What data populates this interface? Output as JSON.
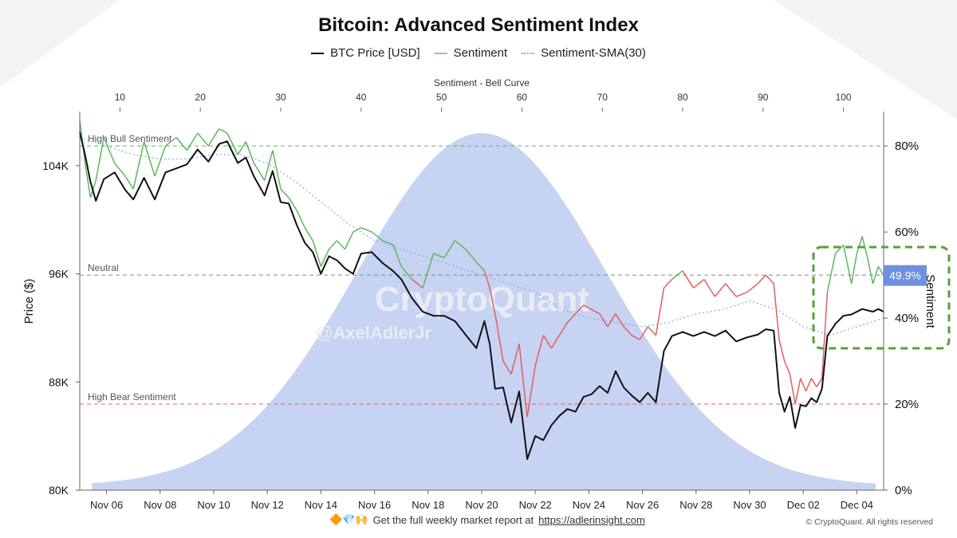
{
  "title": "Bitcoin: Advanced Sentiment Index",
  "legend": [
    {
      "label": "BTC Price [USD]",
      "color": "#111111",
      "style": "solid"
    },
    {
      "label": "Sentiment",
      "color": "#9fb3e8",
      "style": "solid"
    },
    {
      "label": "Sentiment-SMA(30)",
      "color": "#9aa9d8",
      "style": "dotted"
    }
  ],
  "watermark": {
    "brand": "CryptoQuant",
    "handle": "@AxelAdlerJr"
  },
  "footer": {
    "emojis": "🔶💎🙌",
    "text": "Get the full weekly market report at",
    "link": "https://adlerinsight.com",
    "copyright": "© CryptoQuant. All rights reserved"
  },
  "chart_data": {
    "type": "line",
    "title": "Bitcoin: Advanced Sentiment Index",
    "top_axis": {
      "label": "Sentiment - Bell Curve",
      "range": [
        5,
        105
      ],
      "ticks": [
        "10",
        "20",
        "30",
        "40",
        "50",
        "60",
        "70",
        "80",
        "90",
        "100"
      ]
    },
    "left_axis": {
      "label": "Price ($)",
      "range": [
        80000,
        108000
      ],
      "ticks": [
        "80K",
        "88K",
        "96K",
        "104K"
      ]
    },
    "right_axis": {
      "label": "Sentiment",
      "range": [
        0,
        88
      ],
      "ticks": [
        "0%",
        "20%",
        "40%",
        "60%",
        "80%"
      ]
    },
    "x_axis": {
      "range": [
        0,
        30
      ],
      "ticks": [
        {
          "v": 1,
          "label": "Nov 06"
        },
        {
          "v": 3,
          "label": "Nov 08"
        },
        {
          "v": 5,
          "label": "Nov 10"
        },
        {
          "v": 7,
          "label": "Nov 12"
        },
        {
          "v": 9,
          "label": "Nov 14"
        },
        {
          "v": 11,
          "label": "Nov 16"
        },
        {
          "v": 13,
          "label": "Nov 18"
        },
        {
          "v": 15,
          "label": "Nov 20"
        },
        {
          "v": 17,
          "label": "Nov 22"
        },
        {
          "v": 19,
          "label": "Nov 24"
        },
        {
          "v": 21,
          "label": "Nov 26"
        },
        {
          "v": 23,
          "label": "Nov 28"
        },
        {
          "v": 25,
          "label": "Nov 30"
        },
        {
          "v": 27,
          "label": "Dec 02"
        },
        {
          "v": 29,
          "label": "Dec 04"
        }
      ]
    },
    "reference_lines": [
      {
        "label": "High Bull Sentiment",
        "sentiment": 80,
        "color": "#5cb85c"
      },
      {
        "label": "Neutral",
        "sentiment": 50,
        "color": "#888888"
      },
      {
        "label": "High Bear Sentiment",
        "sentiment": 20,
        "color": "#e06060"
      }
    ],
    "bell_curve": {
      "mean": 55,
      "sd": 15.5,
      "peak_sentiment": 82,
      "color": "#c6d3f2"
    },
    "current_value_label": "49.9%",
    "btc_price": {
      "x": [
        0,
        0.2,
        0.4,
        0.6,
        0.9,
        1.3,
        1.7,
        2.0,
        2.4,
        2.8,
        3.2,
        3.6,
        4.0,
        4.4,
        4.8,
        5.2,
        5.5,
        5.9,
        6.2,
        6.5,
        6.9,
        7.2,
        7.5,
        7.8,
        8.1,
        8.4,
        8.7,
        9.0,
        9.3,
        9.6,
        9.9,
        10.2,
        10.5,
        10.9,
        11.3,
        11.7,
        12.0,
        12.4,
        12.8,
        13.2,
        13.6,
        14.0,
        14.4,
        14.8,
        15.1,
        15.3,
        15.5,
        15.8,
        16.1,
        16.4,
        16.7,
        17.0,
        17.3,
        17.6,
        17.9,
        18.2,
        18.5,
        18.8,
        19.1,
        19.4,
        19.7,
        20.0,
        20.3,
        20.6,
        20.9,
        21.2,
        21.5,
        21.8,
        22.1,
        22.5,
        22.9,
        23.3,
        23.7,
        24.1,
        24.5,
        24.9,
        25.3,
        25.6,
        25.9,
        26.1,
        26.3,
        26.5,
        26.7,
        26.9,
        27.1,
        27.3,
        27.5,
        27.7,
        27.9,
        28.2,
        28.5,
        28.8,
        29.0,
        29.2,
        29.4,
        29.6,
        29.8,
        30.0
      ],
      "y": [
        106500,
        104800,
        102800,
        101400,
        103000,
        103500,
        102200,
        101500,
        103100,
        101500,
        103500,
        103800,
        104100,
        105200,
        104300,
        105600,
        105800,
        104200,
        104600,
        103200,
        101800,
        103600,
        101300,
        101200,
        99600,
        98300,
        97600,
        96000,
        97300,
        97000,
        96400,
        96000,
        97500,
        97600,
        96800,
        96200,
        95600,
        94200,
        93200,
        92900,
        92900,
        92500,
        91500,
        90500,
        92500,
        90800,
        87500,
        87600,
        85000,
        87300,
        82300,
        84000,
        83700,
        84800,
        85500,
        86000,
        85800,
        86900,
        87100,
        87700,
        87200,
        88800,
        87600,
        87000,
        86500,
        87200,
        86500,
        90300,
        91400,
        91700,
        91400,
        91700,
        91400,
        91800,
        91000,
        91300,
        91500,
        91900,
        91800,
        87200,
        85800,
        86900,
        84600,
        86300,
        86200,
        86800,
        86500,
        87500,
        91400,
        92300,
        92900,
        93000,
        93200,
        93400,
        93300,
        93200,
        93400,
        93200
      ]
    },
    "sentiment": {
      "x": [
        0,
        0.2,
        0.4,
        0.6,
        0.9,
        1.3,
        1.7,
        2.0,
        2.4,
        2.8,
        3.2,
        3.6,
        4.0,
        4.4,
        4.8,
        5.2,
        5.5,
        5.9,
        6.2,
        6.5,
        6.9,
        7.2,
        7.5,
        7.8,
        8.1,
        8.4,
        8.7,
        9.0,
        9.3,
        9.6,
        9.9,
        10.2,
        10.5,
        10.9,
        11.3,
        11.7,
        12.0,
        12.4,
        12.8,
        13.2,
        13.6,
        14.0,
        14.4,
        14.8,
        15.1,
        15.3,
        15.5,
        15.8,
        16.1,
        16.4,
        16.7,
        17.0,
        17.3,
        17.6,
        17.9,
        18.2,
        18.5,
        18.8,
        19.1,
        19.4,
        19.7,
        20.0,
        20.3,
        20.6,
        20.9,
        21.2,
        21.5,
        21.8,
        22.1,
        22.5,
        22.9,
        23.3,
        23.7,
        24.1,
        24.5,
        24.9,
        25.3,
        25.6,
        25.9,
        26.1,
        26.3,
        26.5,
        26.7,
        26.9,
        27.1,
        27.3,
        27.5,
        27.7,
        27.9,
        28.2,
        28.5,
        28.8,
        29.0,
        29.2,
        29.4,
        29.6,
        29.8,
        30.0
      ],
      "y": [
        86,
        76,
        68,
        72,
        82,
        76,
        73,
        70,
        81,
        73,
        80,
        82,
        79,
        83,
        80,
        84,
        83,
        78,
        81,
        76,
        72,
        79,
        70,
        68,
        65,
        61,
        58,
        52,
        56,
        58,
        56,
        60,
        61,
        60,
        58,
        57,
        52,
        49,
        47,
        55,
        54,
        58,
        56,
        53,
        51,
        47,
        41,
        30,
        27,
        34,
        17,
        29,
        36,
        33,
        36,
        39,
        41,
        43,
        42,
        41,
        38,
        41,
        38,
        36,
        35,
        38,
        36,
        47,
        49,
        51,
        47,
        49,
        45,
        48,
        45,
        46,
        48,
        50,
        48,
        35,
        30,
        27,
        20,
        26,
        23,
        26,
        24,
        26,
        46,
        55,
        57,
        48,
        55,
        59,
        54,
        48,
        52,
        49.9
      ]
    },
    "sentiment_sma30": {
      "x": [
        0,
        1,
        2,
        3,
        4,
        5,
        6,
        7,
        8,
        9,
        10,
        11,
        12,
        13,
        14,
        15,
        16,
        17,
        18,
        19,
        20,
        21,
        22,
        23,
        24,
        25,
        26,
        27,
        28,
        29,
        30
      ],
      "y": [
        82,
        80,
        78,
        77,
        77,
        78,
        78,
        76,
        72,
        67,
        62,
        58,
        56,
        54,
        52,
        50,
        48,
        46,
        42,
        40,
        39,
        38,
        39,
        41,
        42,
        44,
        42,
        38,
        36,
        38,
        40
      ]
    }
  }
}
